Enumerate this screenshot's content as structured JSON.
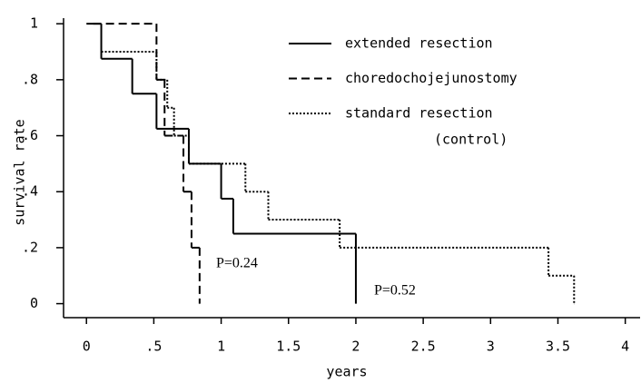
{
  "chart_data": {
    "type": "step",
    "xlabel": "years",
    "ylabel": "survival rate",
    "xlim": [
      -0.17,
      4.11
    ],
    "ylim": [
      -0.05,
      1.02
    ],
    "xticks": [
      0,
      {
        "value": 0.5,
        "label": ".5"
      },
      1,
      1.5,
      2,
      2.5,
      3,
      3.5,
      4
    ],
    "yticks": [
      0,
      {
        "value": 0.2,
        "label": ".2"
      },
      {
        "value": 0.4,
        "label": ".4"
      },
      {
        "value": 0.6,
        "label": ".6"
      },
      {
        "value": 0.8,
        "label": ".8"
      },
      1
    ],
    "series": [
      {
        "name": "extended resection",
        "color": "#000000",
        "dash": "solid",
        "x": [
          0,
          0.11,
          0.34,
          0.52,
          0.76,
          1.0,
          1.09,
          2.0
        ],
        "values": [
          1,
          0.875,
          0.75,
          0.625,
          0.5,
          0.375,
          0.25,
          0
        ]
      },
      {
        "name": "choredochojejunostomy",
        "color": "#000000",
        "dash": "dashed",
        "x": [
          0.05,
          0.52,
          0.58,
          0.72,
          0.78,
          0.84
        ],
        "values": [
          1,
          0.8,
          0.6,
          0.4,
          0.2,
          0
        ]
      },
      {
        "name": "standard resection",
        "legend_note": "(control)",
        "color": "#000000",
        "dash": "dotted",
        "x": [
          0.11,
          0.52,
          0.6,
          0.65,
          0.76,
          1.18,
          1.35,
          1.88,
          3.43,
          3.62
        ],
        "values": [
          0.9,
          0.8,
          0.7,
          0.6,
          0.5,
          0.4,
          0.3,
          0.2,
          0.1,
          0
        ]
      }
    ],
    "annotations": [
      "P=0.24",
      "P=0.52"
    ]
  }
}
